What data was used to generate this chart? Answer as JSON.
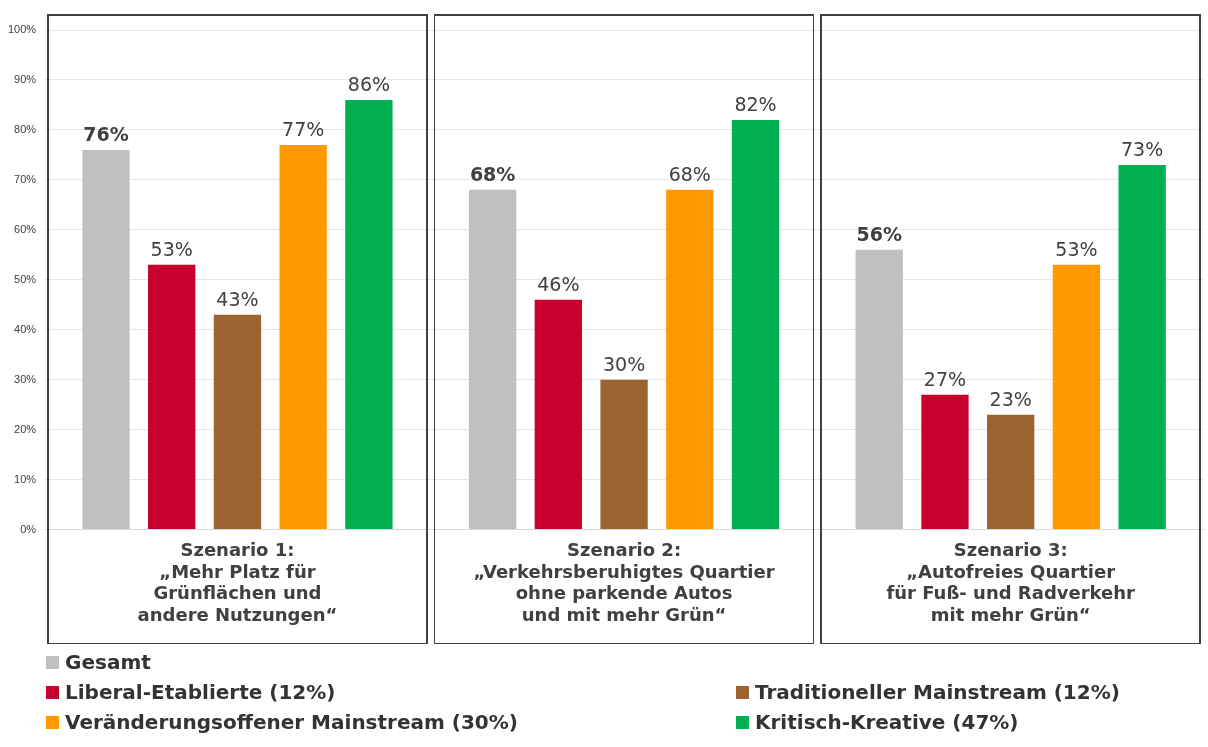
{
  "chart_data": {
    "type": "bar",
    "categories": [
      "Szenario 1:\n„Mehr Platz für\nGrünflächen und\nandere Nutzungen“",
      "Szenario 2:\n„Verkehrsberuhigtes Quartier\nohne parkende Autos\nund mit mehr Grün“",
      "Szenario 3:\n„Autofreies Quartier\nfür Fuß- und Radverkehr\nmit mehr Grün“"
    ],
    "series": [
      {
        "name": "Gesamt",
        "color": "#c0c0c0",
        "values": [
          76,
          68,
          56
        ]
      },
      {
        "name": "Liberal-Etablierte (12%)",
        "color": "#c8002e",
        "values": [
          53,
          46,
          27
        ]
      },
      {
        "name": "Traditioneller Mainstream (12%)",
        "color": "#9a6330",
        "values": [
          43,
          30,
          23
        ]
      },
      {
        "name": "Veränderungsoffener Mainstream (30%)",
        "color": "#ff9900",
        "values": [
          77,
          68,
          53
        ]
      },
      {
        "name": "Kritisch-Kreative (47%)",
        "color": "#00b050",
        "values": [
          86,
          82,
          73
        ]
      }
    ],
    "ylim": [
      0,
      100
    ],
    "yticks": [
      {
        "value": 0,
        "label": "0%"
      },
      {
        "value": 10,
        "label": "10%"
      },
      {
        "value": 20,
        "label": "20%"
      },
      {
        "value": 30,
        "label": "30%"
      },
      {
        "value": 40,
        "label": "40%"
      },
      {
        "value": 50,
        "label": "50%"
      },
      {
        "value": 60,
        "label": "60%"
      },
      {
        "value": 70,
        "label": "70%"
      },
      {
        "value": 80,
        "label": "80%"
      },
      {
        "value": 90,
        "label": "90%"
      },
      {
        "value": 100,
        "label": "100%"
      }
    ],
    "value_labels": [
      [
        "76%",
        "68%",
        "56%"
      ],
      [
        "53%",
        "46%",
        "27%"
      ],
      [
        "43%",
        "30%",
        "23%"
      ],
      [
        "77%",
        "68%",
        "53%"
      ],
      [
        "86%",
        "82%",
        "73%"
      ]
    ],
    "grid": "y",
    "legend": "bottom"
  }
}
